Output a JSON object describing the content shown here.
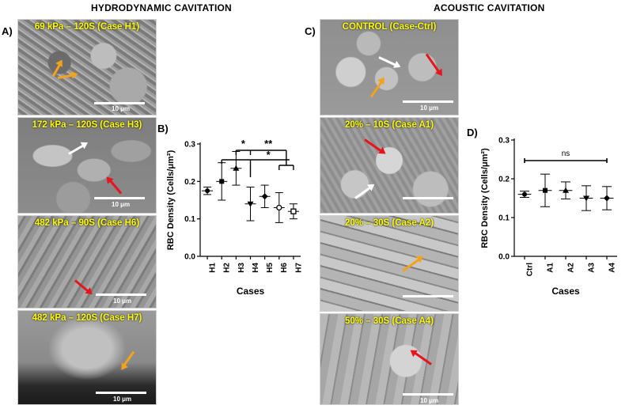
{
  "sections": {
    "hydrodynamic": "HYDRODYNAMIC CAVITATION",
    "acoustic": "ACOUSTIC CAVITATION"
  },
  "panels": {
    "a": "A)",
    "b": "B)",
    "c": "C)",
    "d": "D)"
  },
  "images_left": [
    {
      "label": "69 kPa – 120S (Case H1)",
      "scale": "10 μm"
    },
    {
      "label": "172 kPa – 120S (Case H3)",
      "scale": "10 μm"
    },
    {
      "label": "482 kPa – 90S (Case H6)",
      "scale": "10 μm"
    },
    {
      "label": "482 kPa – 120S (Case H7)",
      "scale": "10 μm"
    }
  ],
  "images_right": [
    {
      "label": "CONTROL (Case-Ctrl)",
      "scale": "10 μm"
    },
    {
      "label": "20% – 10S (Case A1)",
      "scale": "10 μm"
    },
    {
      "label": "20% – 30S (Case A2)",
      "scale": "10 μm"
    },
    {
      "label": "50% – 30S (Case A4)",
      "scale": "10 μm"
    }
  ],
  "chart_data": [
    {
      "type": "scatter",
      "title": "",
      "xlabel": "Cases",
      "ylabel": "RBC Density (Cells/μm²)",
      "ylim": [
        0.0,
        0.3
      ],
      "yticks": [
        "0.0",
        "0.1",
        "0.2",
        "0.3"
      ],
      "categories": [
        "H1",
        "H2",
        "H3",
        "H4",
        "H5",
        "H6",
        "H7"
      ],
      "values": [
        0.175,
        0.2,
        0.235,
        0.14,
        0.16,
        0.13,
        0.12
      ],
      "error": [
        0.01,
        0.05,
        0.045,
        0.045,
        0.03,
        0.04,
        0.02
      ],
      "markers": [
        "circle",
        "square",
        "triangle",
        "triangle-down",
        "diamond",
        "circle-open",
        "square-open"
      ],
      "significance": [
        {
          "from": "H3",
          "to": "H4",
          "label": "*"
        },
        {
          "from": "H3",
          "to": "H6-H7",
          "label": "**"
        },
        {
          "from": "H2",
          "to": "H6-H7",
          "label": "*"
        }
      ]
    },
    {
      "type": "scatter",
      "title": "",
      "xlabel": "Cases",
      "ylabel": "RBC Density (Cells/μm²)",
      "ylim": [
        0.0,
        0.3
      ],
      "yticks": [
        "0.0",
        "0.1",
        "0.2",
        "0.3"
      ],
      "categories": [
        "Ctrl",
        "A1",
        "A2",
        "A3",
        "A4"
      ],
      "values": [
        0.16,
        0.17,
        0.17,
        0.15,
        0.15
      ],
      "error": [
        0.008,
        0.042,
        0.022,
        0.032,
        0.03
      ],
      "markers": [
        "circle",
        "square",
        "triangle",
        "triangle-down",
        "diamond"
      ],
      "significance": [
        {
          "from": "Ctrl",
          "to": "A4",
          "label": "ns"
        }
      ]
    }
  ]
}
